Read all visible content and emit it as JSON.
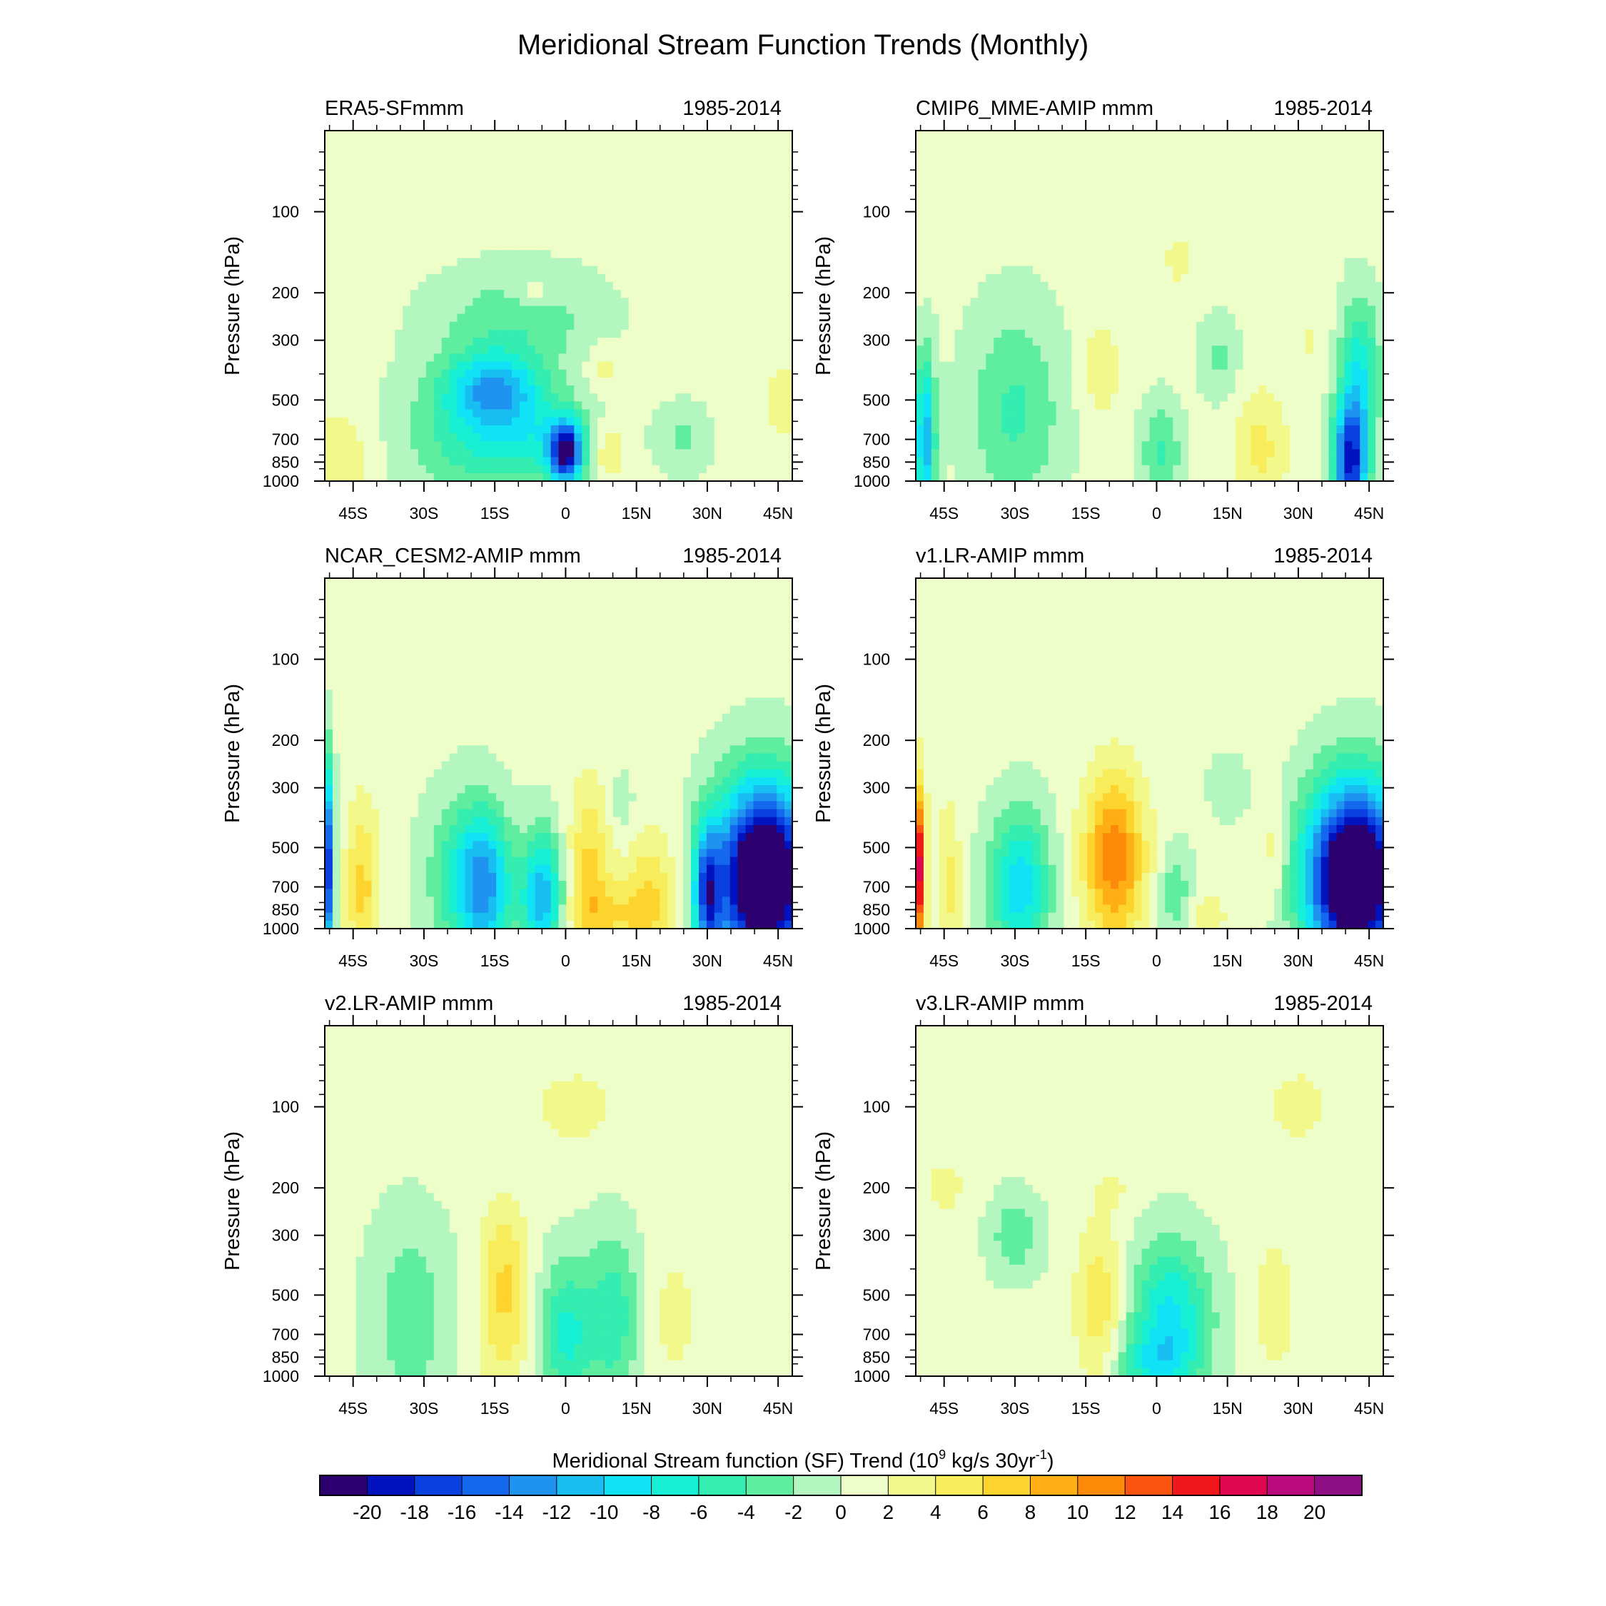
{
  "figure_title": "Meridional Stream Function Trends (Monthly)",
  "colorbar": {
    "label_main": "Meridional Stream function (SF) Trend (10",
    "label_sup1": "9",
    "label_mid": " kg/s 30yr",
    "label_sup2": "-1",
    "label_end": ")",
    "levels": [
      -20,
      -18,
      -16,
      -14,
      -12,
      -10,
      -8,
      -6,
      -4,
      -2,
      0,
      2,
      4,
      6,
      8,
      10,
      12,
      14,
      16,
      18,
      20
    ],
    "colors": [
      "#2c006e",
      "#0013bf",
      "#0a3fe0",
      "#1468ee",
      "#1e93f0",
      "#18bef2",
      "#10e3f6",
      "#17f0d4",
      "#33edb1",
      "#5fed9f",
      "#b4f6c0",
      "#eefec8",
      "#f3f88a",
      "#f8ec5a",
      "#fcd42d",
      "#ffae14",
      "#fe8a0a",
      "#fb5310",
      "#f2171a",
      "#e0074e",
      "#bb0a7e",
      "#8e0e86"
    ]
  },
  "chart_data": [
    {
      "type": "heatmap",
      "panel_id": "p1",
      "title_left": "ERA5-SFmmm",
      "title_right": "1985-2014",
      "ylabel": "Pressure (hPa)",
      "yticks": [
        100,
        200,
        300,
        500,
        700,
        850,
        1000
      ],
      "xticks": [
        "45S",
        "30S",
        "15S",
        "0",
        "15N",
        "30N",
        "45N"
      ],
      "xlim": [
        -51,
        48
      ],
      "ylim_levels": [
        50,
        1000
      ],
      "features": [
        {
          "lat": -15,
          "p": 450,
          "sx": 7,
          "sy": 0.22,
          "a": -10
        },
        {
          "lat": 0,
          "p": 780,
          "sx": 2.5,
          "sy": 0.18,
          "a": -20
        },
        {
          "lat": -8,
          "p": 700,
          "sx": 10,
          "sy": 0.28,
          "a": -6
        },
        {
          "lat": -22,
          "p": 650,
          "sx": 10,
          "sy": 0.4,
          "a": -4
        },
        {
          "lat": -10,
          "p": 250,
          "sx": 12,
          "sy": 0.3,
          "a": -4
        },
        {
          "lat": -7,
          "p": 200,
          "sx": 3,
          "sy": 0.08,
          "a": 3
        },
        {
          "lat": 9,
          "p": 780,
          "sx": 3,
          "sy": 0.18,
          "a": 4
        },
        {
          "lat": 8,
          "p": 380,
          "sx": 2.5,
          "sy": 0.15,
          "a": 2.5
        },
        {
          "lat": 25,
          "p": 700,
          "sx": 4,
          "sy": 0.2,
          "a": -3
        },
        {
          "lat": -48,
          "p": 800,
          "sx": 5,
          "sy": 0.3,
          "a": 3
        },
        {
          "lat": 46,
          "p": 500,
          "sx": 3,
          "sy": 0.25,
          "a": 2.5
        }
      ]
    },
    {
      "type": "heatmap",
      "panel_id": "p2",
      "title_left": "CMIP6_MME-AMIP  mmm",
      "title_right": "1985-2014",
      "ylabel": "Pressure (hPa)",
      "yticks": [
        100,
        200,
        300,
        500,
        700,
        850,
        1000
      ],
      "xticks": [
        "45S",
        "30S",
        "15S",
        "0",
        "15N",
        "30N",
        "45N"
      ],
      "xlim": [
        -51,
        48
      ],
      "ylim_levels": [
        50,
        1000
      ],
      "features": [
        {
          "lat": -30,
          "p": 550,
          "sx": 7,
          "sy": 0.6,
          "a": -5
        },
        {
          "lat": -12,
          "p": 380,
          "sx": 3,
          "sy": 0.3,
          "a": 3
        },
        {
          "lat": 1,
          "p": 780,
          "sx": 3,
          "sy": 0.3,
          "a": -5
        },
        {
          "lat": 13,
          "p": 350,
          "sx": 3,
          "sy": 0.25,
          "a": -3
        },
        {
          "lat": 22,
          "p": 750,
          "sx": 4,
          "sy": 0.35,
          "a": 4
        },
        {
          "lat": 41,
          "p": 850,
          "sx": 2.5,
          "sy": 0.35,
          "a": -19
        },
        {
          "lat": 43,
          "p": 400,
          "sx": 3,
          "sy": 0.45,
          "a": -8
        },
        {
          "lat": -49,
          "p": 700,
          "sx": 1.5,
          "sy": 0.5,
          "a": -12
        },
        {
          "lat": 5,
          "p": 150,
          "sx": 3,
          "sy": 0.2,
          "a": 2
        },
        {
          "lat": 32,
          "p": 300,
          "sx": 3,
          "sy": 0.3,
          "a": 1.5
        }
      ]
    },
    {
      "type": "heatmap",
      "panel_id": "p3",
      "title_left": "NCAR_CESM2-AMIP  mmm",
      "title_right": "1985-2014",
      "ylabel": "Pressure (hPa)",
      "yticks": [
        100,
        200,
        300,
        500,
        700,
        850,
        1000
      ],
      "xticks": [
        "45S",
        "30S",
        "15S",
        "0",
        "15N",
        "30N",
        "45N"
      ],
      "xlim": [
        -51,
        48
      ],
      "ylim_levels": [
        50,
        1000
      ],
      "features": [
        {
          "lat": -17,
          "p": 700,
          "sx": 4,
          "sy": 0.45,
          "a": -12
        },
        {
          "lat": -5,
          "p": 780,
          "sx": 3,
          "sy": 0.4,
          "a": -12
        },
        {
          "lat": -23,
          "p": 650,
          "sx": 5,
          "sy": 0.5,
          "a": -5
        },
        {
          "lat": 5,
          "p": 600,
          "sx": 3,
          "sy": 0.5,
          "a": 6
        },
        {
          "lat": 18,
          "p": 750,
          "sx": 4,
          "sy": 0.4,
          "a": 5
        },
        {
          "lat": 10,
          "p": 900,
          "sx": 6,
          "sy": 0.2,
          "a": 4
        },
        {
          "lat": -43,
          "p": 700,
          "sx": 2.5,
          "sy": 0.5,
          "a": 6
        },
        {
          "lat": 42,
          "p": 650,
          "sx": 7,
          "sy": 0.55,
          "a": -30
        },
        {
          "lat": 30,
          "p": 750,
          "sx": 2,
          "sy": 0.4,
          "a": -14
        },
        {
          "lat": -51,
          "p": 600,
          "sx": 1.2,
          "sy": 0.6,
          "a": -22
        },
        {
          "lat": 12,
          "p": 350,
          "sx": 2,
          "sy": 0.2,
          "a": -2
        }
      ]
    },
    {
      "type": "heatmap",
      "panel_id": "p4",
      "title_left": "v1.LR-AMIP  mmm",
      "title_right": "1985-2014",
      "ylabel": "Pressure (hPa)",
      "yticks": [
        100,
        200,
        300,
        500,
        700,
        850,
        1000
      ],
      "xticks": [
        "45S",
        "30S",
        "15S",
        "0",
        "15N",
        "30N",
        "45N"
      ],
      "xlim": [
        -51,
        48
      ],
      "ylim_levels": [
        50,
        1000
      ],
      "features": [
        {
          "lat": -29,
          "p": 700,
          "sx": 4.5,
          "sy": 0.45,
          "a": -10
        },
        {
          "lat": -9,
          "p": 550,
          "sx": 4.5,
          "sy": 0.5,
          "a": 11
        },
        {
          "lat": 4,
          "p": 750,
          "sx": 2.5,
          "sy": 0.3,
          "a": -4
        },
        {
          "lat": 15,
          "p": 300,
          "sx": 3,
          "sy": 0.2,
          "a": -2
        },
        {
          "lat": 42,
          "p": 650,
          "sx": 7,
          "sy": 0.55,
          "a": -30
        },
        {
          "lat": -51,
          "p": 600,
          "sx": 1.3,
          "sy": 0.5,
          "a": 19
        },
        {
          "lat": -44,
          "p": 700,
          "sx": 1.8,
          "sy": 0.5,
          "a": 4
        },
        {
          "lat": 11,
          "p": 900,
          "sx": 3,
          "sy": 0.15,
          "a": 2.5
        },
        {
          "lat": 25,
          "p": 500,
          "sx": 1.5,
          "sy": 0.3,
          "a": 3
        }
      ]
    },
    {
      "type": "heatmap",
      "panel_id": "p5",
      "title_left": "v2.LR-AMIP  mmm",
      "title_right": "1985-2014",
      "ylabel": "Pressure (hPa)",
      "yticks": [
        100,
        200,
        300,
        500,
        700,
        850,
        1000
      ],
      "xticks": [
        "45S",
        "30S",
        "15S",
        "0",
        "15N",
        "30N",
        "45N"
      ],
      "xlim": [
        -51,
        48
      ],
      "ylim_levels": [
        50,
        1000
      ],
      "features": [
        {
          "lat": -13,
          "p": 400,
          "sx": 3.5,
          "sy": 0.4,
          "a": 5
        },
        {
          "lat": -13,
          "p": 750,
          "sx": 4,
          "sy": 0.35,
          "a": 3
        },
        {
          "lat": 0,
          "p": 700,
          "sx": 4,
          "sy": 0.45,
          "a": -7
        },
        {
          "lat": 10,
          "p": 600,
          "sx": 4,
          "sy": 0.5,
          "a": -6
        },
        {
          "lat": -33,
          "p": 600,
          "sx": 6,
          "sy": 0.6,
          "a": -4
        },
        {
          "lat": 2,
          "p": 100,
          "sx": 8,
          "sy": 0.3,
          "a": 2
        },
        {
          "lat": 23,
          "p": 600,
          "sx": 4,
          "sy": 0.5,
          "a": 2
        }
      ]
    },
    {
      "type": "heatmap",
      "panel_id": "p6",
      "title_left": "v3.LR-AMIP  mmm",
      "title_right": "1985-2014",
      "ylabel": "Pressure (hPa)",
      "yticks": [
        100,
        200,
        300,
        500,
        700,
        850,
        1000
      ],
      "xticks": [
        "45S",
        "30S",
        "15S",
        "0",
        "15N",
        "30N",
        "45N"
      ],
      "xlim": [
        -51,
        48
      ],
      "ylim_levels": [
        50,
        1000
      ],
      "features": [
        {
          "lat": 3,
          "p": 600,
          "sx": 6,
          "sy": 0.45,
          "a": -9
        },
        {
          "lat": -1,
          "p": 900,
          "sx": 6,
          "sy": 0.2,
          "a": -5
        },
        {
          "lat": -12,
          "p": 550,
          "sx": 3.5,
          "sy": 0.5,
          "a": 5
        },
        {
          "lat": -30,
          "p": 300,
          "sx": 4,
          "sy": 0.25,
          "a": -4
        },
        {
          "lat": 25,
          "p": 550,
          "sx": 3,
          "sy": 0.4,
          "a": 3
        },
        {
          "lat": 30,
          "p": 100,
          "sx": 6,
          "sy": 0.3,
          "a": 2
        },
        {
          "lat": -45,
          "p": 200,
          "sx": 4,
          "sy": 0.2,
          "a": 2
        },
        {
          "lat": -9,
          "p": 200,
          "sx": 3,
          "sy": 0.15,
          "a": 1.5
        }
      ]
    }
  ]
}
